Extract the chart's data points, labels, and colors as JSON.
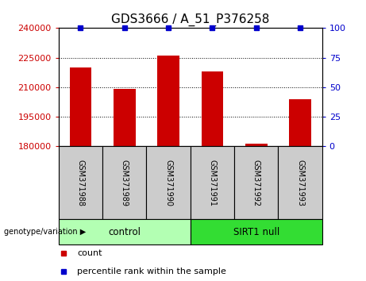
{
  "title": "GDS3666 / A_51_P376258",
  "samples": [
    "GSM371988",
    "GSM371989",
    "GSM371990",
    "GSM371991",
    "GSM371992",
    "GSM371993"
  ],
  "counts": [
    220000,
    209000,
    226000,
    218000,
    181200,
    204000
  ],
  "percentiles": [
    100,
    100,
    100,
    100,
    100,
    100
  ],
  "ylim_left": [
    180000,
    240000
  ],
  "yticks_left": [
    180000,
    195000,
    210000,
    225000,
    240000
  ],
  "ylim_right": [
    0,
    100
  ],
  "yticks_right": [
    0,
    25,
    50,
    75,
    100
  ],
  "bar_color": "#cc0000",
  "percentile_color": "#0000cc",
  "groups": [
    {
      "label": "control",
      "indices": [
        0,
        1,
        2
      ],
      "color": "#b3ffb3"
    },
    {
      "label": "SIRT1 null",
      "indices": [
        3,
        4,
        5
      ],
      "color": "#33dd33"
    }
  ],
  "group_label_prefix": "genotype/variation",
  "legend_count_label": "count",
  "legend_percentile_label": "percentile rank within the sample",
  "bar_width": 0.5,
  "background_color": "#ffffff",
  "plot_bg": "#ffffff",
  "sample_bg": "#cccccc",
  "grid_color": "#000000",
  "title_fontsize": 11,
  "tick_fontsize": 8,
  "sample_fontsize": 7,
  "group_fontsize": 8.5,
  "legend_fontsize": 8
}
